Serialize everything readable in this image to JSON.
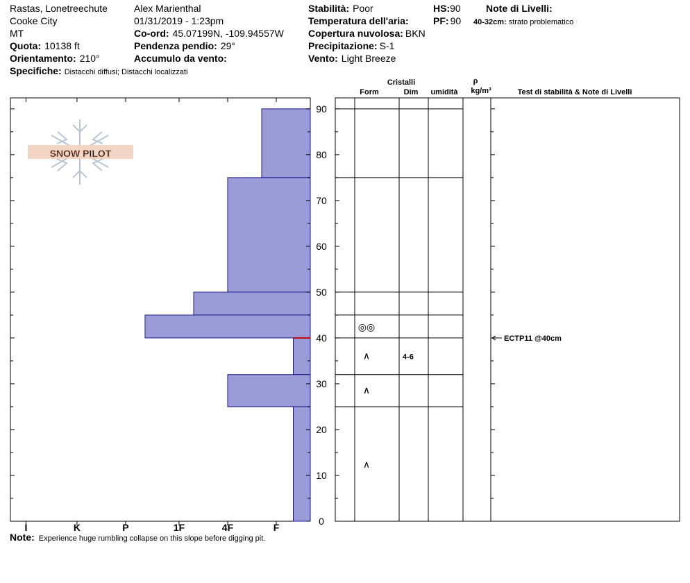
{
  "header": {
    "location": "Rastas, Lonetreechute",
    "region": "Cooke City",
    "state": "MT",
    "elevation": {
      "label": "Quota:",
      "value": "10138 ft"
    },
    "aspect": {
      "label": "Orientamento:",
      "value": "210°"
    },
    "specifics": {
      "label": "Specifiche:",
      "value": "Distacchi diffusi;  Distacchi localizzati"
    },
    "observer": "Alex Marienthal",
    "datetime": "01/31/2019 - 1:23pm",
    "coords": {
      "label": "Co-ord:",
      "value": "45.07199N, -109.94557W"
    },
    "slope": {
      "label": "Pendenza pendio:",
      "value": "29°"
    },
    "wind_loading": {
      "label": "Accumulo da vento:"
    },
    "stability": {
      "label": "Stabilità:",
      "value": "Poor"
    },
    "air_temp": {
      "label": "Temperatura dell'aria:"
    },
    "sky": {
      "label": "Copertura nuvolosa:",
      "value": "BKN"
    },
    "precip": {
      "label": "Precipitazione:",
      "value": "S-1"
    },
    "wind": {
      "label": "Vento:",
      "value": "Light Breeze"
    },
    "hs": {
      "label": "HS:",
      "value": "90"
    },
    "pf": {
      "label": "PF:",
      "value": "90"
    },
    "layer_notes": {
      "label": "Note di Livelli:",
      "items": [
        {
          "label": "40-32cm:",
          "value": "strato problematico"
        }
      ]
    },
    "logo": "SNOW PILOT"
  },
  "table": {
    "group": "Cristalli",
    "columns": [
      "Form",
      "Dim",
      "umidità"
    ],
    "density": "ρ",
    "density_unit": "kg/m³",
    "tests_header": "Test di stabilità & Note di Livelli"
  },
  "note": {
    "label": "Note:",
    "value": "Experience huge rumbling collapse on this slope before digging pit."
  },
  "chart_data": {
    "type": "snow-profile",
    "color": "#9b9bd7",
    "layer_top": [
      90,
      75,
      50,
      45,
      40,
      32,
      25
    ],
    "layer_bottom": [
      75,
      50,
      45,
      40,
      32,
      25,
      0
    ],
    "hardness": [
      1.0,
      1.7,
      2.4,
      3.4,
      0.35,
      1.7,
      0.35
    ],
    "grain_form": [
      null,
      null,
      null,
      "◎◎",
      "∧",
      "∧",
      "∧"
    ],
    "grain_size": [
      null,
      null,
      null,
      null,
      "4-6",
      null,
      null
    ],
    "xlim": [
      0,
      6.17
    ],
    "xticks": [
      {
        "value": 5.85,
        "label": "I"
      },
      {
        "value": 4.8,
        "label": "K"
      },
      {
        "value": 3.8,
        "label": "P"
      },
      {
        "value": 2.7,
        "label": "1F"
      },
      {
        "value": 1.7,
        "label": "4F"
      },
      {
        "value": 0.7,
        "label": "F"
      }
    ],
    "ylim": [
      0,
      92.4
    ],
    "yticks": [
      0,
      10,
      20,
      30,
      40,
      50,
      60,
      70,
      80,
      90
    ],
    "yminorticks": [
      5,
      15,
      25,
      35,
      45,
      55,
      65,
      75,
      85
    ],
    "tests": [
      {
        "label": "ECTP11 @40cm",
        "depth": 40
      }
    ]
  }
}
